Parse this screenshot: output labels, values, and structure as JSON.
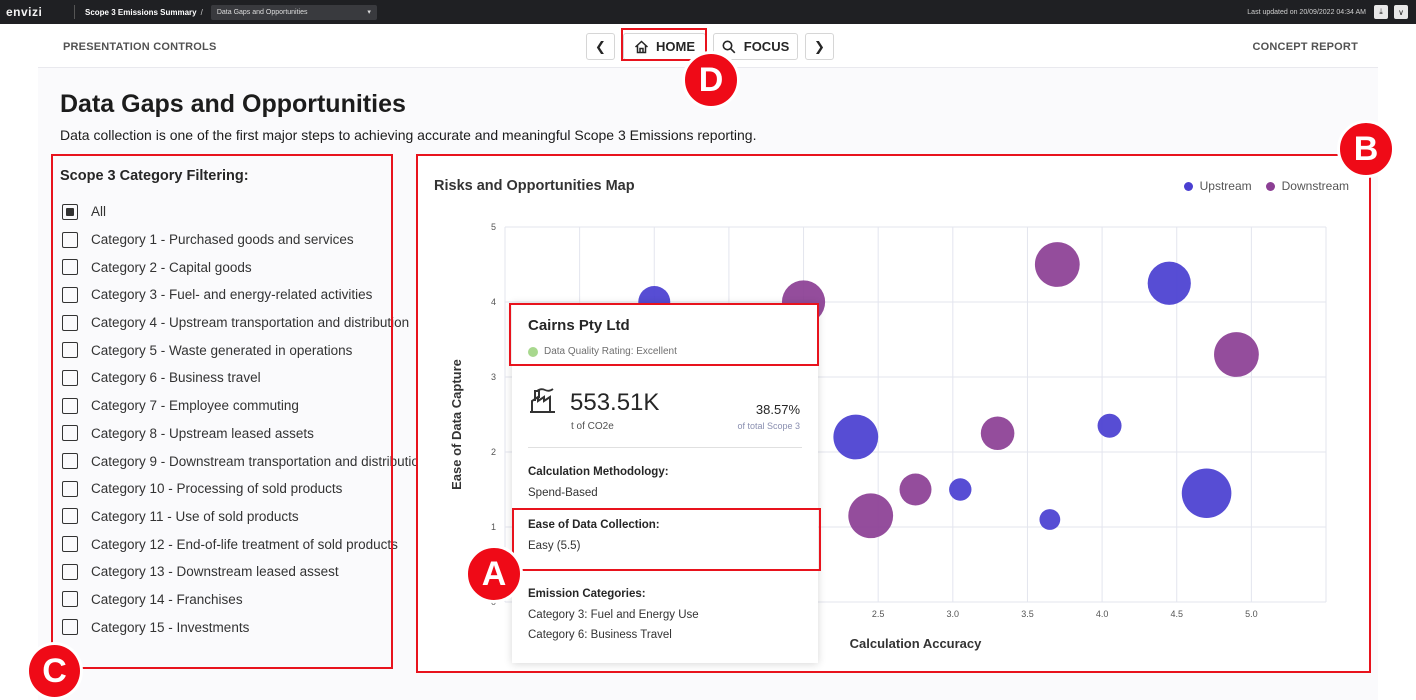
{
  "topbar": {
    "logo": "envizi",
    "breadcrumb": "Scope 3 Emissions Summary",
    "breadcrumb_sep": "/",
    "page_select": "Data Gaps and Opportunities",
    "last_updated": "Last updated on 20/09/2022 04:34 AM"
  },
  "controls": {
    "label": "PRESENTATION CONTROLS",
    "home": "HOME",
    "focus": "FOCUS",
    "concept": "CONCEPT REPORT"
  },
  "page": {
    "title": "Data Gaps and Opportunities",
    "subtitle": "Data collection is one of the first major steps to achieving accurate and meaningful Scope 3 Emissions reporting."
  },
  "filter": {
    "heading": "Scope 3 Category Filtering:",
    "items": [
      {
        "label": "All",
        "checked": true
      },
      {
        "label": "Category 1 - Purchased goods and services",
        "checked": false
      },
      {
        "label": "Category 2 - Capital goods",
        "checked": false
      },
      {
        "label": "Category 3 - Fuel- and energy-related activities",
        "checked": false
      },
      {
        "label": "Category 4 - Upstream transportation and distribution",
        "checked": false
      },
      {
        "label": "Category 5 - Waste generated in operations",
        "checked": false
      },
      {
        "label": "Category 6 - Business travel",
        "checked": false
      },
      {
        "label": "Category 7 - Employee commuting",
        "checked": false
      },
      {
        "label": "Category 8 - Upstream leased assets",
        "checked": false
      },
      {
        "label": "Category 9 - Downstream transportation and distribution",
        "checked": false
      },
      {
        "label": "Category 10 - Processing of sold products",
        "checked": false
      },
      {
        "label": "Category 11 - Use of sold products",
        "checked": false
      },
      {
        "label": "Category 12 - End-of-life treatment of sold products",
        "checked": false
      },
      {
        "label": "Category 13 - Downstream leased assest",
        "checked": false
      },
      {
        "label": "Category 14 - Franchises",
        "checked": false
      },
      {
        "label": "Category 15 - Investments",
        "checked": false
      }
    ]
  },
  "chart_data": {
    "type": "scatter",
    "title": "Risks and Opportunities Map",
    "xlabel": "Calculation Accuracy",
    "ylabel": "Ease of Data Capture",
    "xlim": [
      0,
      5.5
    ],
    "ylim": [
      0,
      5
    ],
    "xticks": [
      "2.5",
      "3.0",
      "3.5",
      "4.0",
      "4.5",
      "5.0"
    ],
    "yticks": [
      "0",
      "1",
      "2",
      "3",
      "4",
      "5"
    ],
    "legend_position": "top-right",
    "grid": true,
    "series": [
      {
        "name": "Upstream",
        "color": "#4a3fd1",
        "points": [
          {
            "x": 1.0,
            "y": 4.0,
            "r": 1.0
          },
          {
            "x": 2.35,
            "y": 2.2,
            "r": 1.4
          },
          {
            "x": 3.05,
            "y": 1.5,
            "r": 0.7
          },
          {
            "x": 3.65,
            "y": 1.1,
            "r": 0.65
          },
          {
            "x": 4.05,
            "y": 2.35,
            "r": 0.75
          },
          {
            "x": 4.45,
            "y": 4.25,
            "r": 1.35
          },
          {
            "x": 4.7,
            "y": 1.45,
            "r": 1.55
          }
        ]
      },
      {
        "name": "Downstream",
        "color": "#8c3f94",
        "points": [
          {
            "x": 2.0,
            "y": 4.0,
            "r": 1.35
          },
          {
            "x": 2.45,
            "y": 1.15,
            "r": 1.4
          },
          {
            "x": 2.75,
            "y": 1.5,
            "r": 1.0
          },
          {
            "x": 3.3,
            "y": 2.25,
            "r": 1.05
          },
          {
            "x": 3.7,
            "y": 4.5,
            "r": 1.4
          },
          {
            "x": 4.9,
            "y": 3.3,
            "r": 1.4
          }
        ]
      }
    ]
  },
  "tooltip": {
    "company": "Cairns Pty Ltd",
    "rating": "Data Quality Rating: Excellent",
    "value": "553.51K",
    "unit": "t of CO2e",
    "percent": "38.57%",
    "percent_label": "of total Scope 3",
    "calc_heading": "Calculation Methodology:",
    "calc_value": "Spend-Based",
    "ease_heading": "Ease of Data Collection:",
    "ease_value": "Easy (5.5)",
    "em_heading": "Emission Categories:",
    "em_values": [
      "Category 3: Fuel and Energy Use",
      "Category 6: Business Travel"
    ]
  },
  "markers": {
    "a": "A",
    "b": "B",
    "c": "C",
    "d": "D"
  }
}
